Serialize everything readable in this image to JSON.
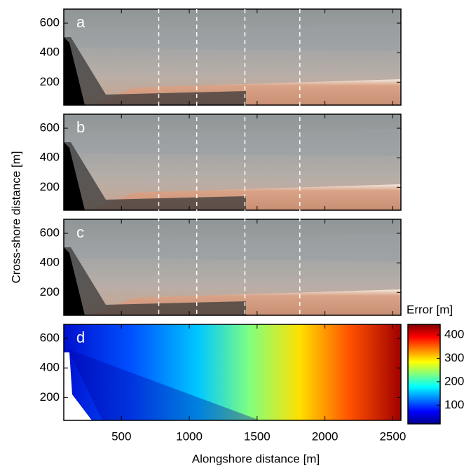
{
  "chart_data": {
    "type": "image-panels",
    "panels": [
      {
        "label": "a",
        "kind": "photo"
      },
      {
        "label": "b",
        "kind": "photo"
      },
      {
        "label": "c",
        "kind": "photo"
      },
      {
        "label": "d",
        "kind": "error"
      }
    ],
    "xlabel": "Alongshore distance [m]",
    "ylabel": "Cross-shore distance [m]",
    "xlim": [
      75,
      2560
    ],
    "xticks": [
      500,
      1000,
      1500,
      2000,
      2500
    ],
    "ylim": [
      45,
      695
    ],
    "yticks": [
      200,
      400,
      600
    ],
    "dashed_lines": [
      775,
      1055,
      1410,
      1815
    ],
    "colorbar": {
      "label": "Error [m]",
      "lim": [
        20,
        445
      ],
      "ticks": [
        100,
        200,
        300,
        400
      ]
    }
  }
}
